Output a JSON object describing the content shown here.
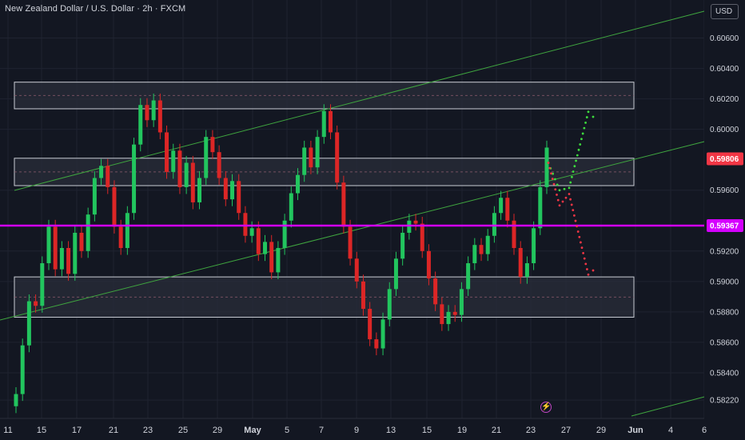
{
  "header": {
    "symbol_title": "New Zealand Dollar / U.S. Dollar · 2h · FXCM",
    "currency_button": "USD"
  },
  "icons": {
    "flash": "lightning-icon"
  },
  "colors": {
    "background": "#131722",
    "grid": "#1f2330",
    "bull": "#22c55e",
    "bear": "#dc2626",
    "support_line": "#d400ff",
    "trend_line": "#3fa53f",
    "zone_fill": "#2a2d3a",
    "zone_border": "#c9ccd4",
    "price_badge_current": "#f23645",
    "price_badge_level": "#d400ff",
    "projection_up": "#3ddc3d",
    "projection_down": "#f23645"
  },
  "chart_data": {
    "type": "candlestick",
    "title": "",
    "xlabel": "",
    "ylabel": "",
    "ylim": [
      0.581,
      0.6085
    ],
    "grid": true,
    "x_ticks": [
      "11",
      "15",
      "17",
      "21",
      "23",
      "25",
      "29",
      "May",
      "5",
      "7",
      "9",
      "13",
      "15",
      "19",
      "21",
      "23",
      "27",
      "29",
      "Jun",
      "4",
      "6"
    ],
    "y_ticks": [
      "0.60600",
      "0.60400",
      "0.60200",
      "0.60000",
      "0.59600",
      "0.59200",
      "0.59000",
      "0.58800",
      "0.58600",
      "0.58400",
      "0.58220"
    ],
    "price_badges": [
      {
        "label": "0.59806",
        "value": 0.59806,
        "kind": "current"
      },
      {
        "label": "0.59367",
        "value": 0.59367,
        "kind": "level"
      }
    ],
    "horizontal_level": 0.59367,
    "zones": [
      {
        "top": 0.6031,
        "bottom": 0.60135
      },
      {
        "top": 0.5981,
        "bottom": 0.5963
      },
      {
        "top": 0.5903,
        "bottom": 0.58765
      }
    ],
    "series": [
      {
        "name": "",
        "points": [
          [
            0.5818,
            0.5826
          ],
          [
            0.5826,
            0.5858
          ],
          [
            0.5858,
            0.5887
          ],
          [
            0.5887,
            0.5884
          ],
          [
            0.5884,
            0.5912
          ],
          [
            0.5912,
            0.5936
          ],
          [
            0.5936,
            0.5908
          ],
          [
            0.5908,
            0.5922
          ],
          [
            0.5922,
            0.5905
          ],
          [
            0.5905,
            0.5932
          ],
          [
            0.5932,
            0.592
          ],
          [
            0.592,
            0.5944
          ],
          [
            0.5944,
            0.5968
          ],
          [
            0.5968,
            0.5976
          ],
          [
            0.5976,
            0.5962
          ],
          [
            0.5962,
            0.5936
          ],
          [
            0.5936,
            0.5922
          ],
          [
            0.5922,
            0.5945
          ],
          [
            0.5945,
            0.599
          ],
          [
            0.599,
            0.6016
          ],
          [
            0.6016,
            0.6006
          ],
          [
            0.6006,
            0.6019
          ],
          [
            0.6019,
            0.5998
          ],
          [
            0.5998,
            0.5972
          ],
          [
            0.5972,
            0.5986
          ],
          [
            0.5986,
            0.5962
          ],
          [
            0.5962,
            0.5978
          ],
          [
            0.5978,
            0.5952
          ],
          [
            0.5952,
            0.5968
          ],
          [
            0.5968,
            0.5995
          ],
          [
            0.5995,
            0.5985
          ],
          [
            0.5985,
            0.5968
          ],
          [
            0.5968,
            0.5954
          ],
          [
            0.5954,
            0.5966
          ],
          [
            0.5966,
            0.5945
          ],
          [
            0.5945,
            0.593
          ],
          [
            0.593,
            0.5935
          ],
          [
            0.5935,
            0.5918
          ],
          [
            0.5918,
            0.5926
          ],
          [
            0.5926,
            0.5906
          ],
          [
            0.5906,
            0.5922
          ],
          [
            0.5922,
            0.594
          ],
          [
            0.594,
            0.5958
          ],
          [
            0.5958,
            0.597
          ],
          [
            0.597,
            0.5988
          ],
          [
            0.5988,
            0.5975
          ],
          [
            0.5975,
            0.5995
          ],
          [
            0.5995,
            0.6012
          ],
          [
            0.6012,
            0.5998
          ],
          [
            0.5998,
            0.5965
          ],
          [
            0.5965,
            0.5936
          ],
          [
            0.5936,
            0.5915
          ],
          [
            0.5915,
            0.59
          ],
          [
            0.59,
            0.5882
          ],
          [
            0.5882,
            0.5862
          ],
          [
            0.5862,
            0.5856
          ],
          [
            0.5856,
            0.5875
          ],
          [
            0.5875,
            0.5895
          ],
          [
            0.5895,
            0.5915
          ],
          [
            0.5915,
            0.5932
          ],
          [
            0.5932,
            0.594
          ],
          [
            0.594,
            0.5938
          ],
          [
            0.5938,
            0.592
          ],
          [
            0.592,
            0.5902
          ],
          [
            0.5902,
            0.5885
          ],
          [
            0.5885,
            0.5872
          ],
          [
            0.5872,
            0.588
          ],
          [
            0.588,
            0.5878
          ],
          [
            0.5878,
            0.5895
          ],
          [
            0.5895,
            0.5912
          ],
          [
            0.5912,
            0.5924
          ],
          [
            0.5924,
            0.5918
          ],
          [
            0.5918,
            0.593
          ],
          [
            0.593,
            0.5945
          ],
          [
            0.5945,
            0.5955
          ],
          [
            0.5955,
            0.594
          ],
          [
            0.594,
            0.5922
          ],
          [
            0.5922,
            0.5903
          ],
          [
            0.5903,
            0.5912
          ],
          [
            0.5912,
            0.5935
          ],
          [
            0.5935,
            0.5962
          ],
          [
            0.5962,
            0.5988
          ]
        ]
      }
    ],
    "projections": [
      {
        "name": "",
        "direction": "up",
        "points": [
          [
            0.5975,
            0.5981
          ],
          [
            0.5952,
            0.5968
          ],
          [
            0.5958,
            0.5965
          ],
          [
            0.6012,
            0.6011
          ],
          [
            0.6002,
            0.6008
          ]
        ]
      },
      {
        "name": "",
        "direction": "down",
        "points": [
          [
            0.5975,
            0.5981
          ],
          [
            0.5948,
            0.5952
          ],
          [
            0.596,
            0.5955
          ],
          [
            0.5903,
            0.5906
          ],
          [
            0.5912,
            0.5908
          ]
        ]
      }
    ]
  }
}
